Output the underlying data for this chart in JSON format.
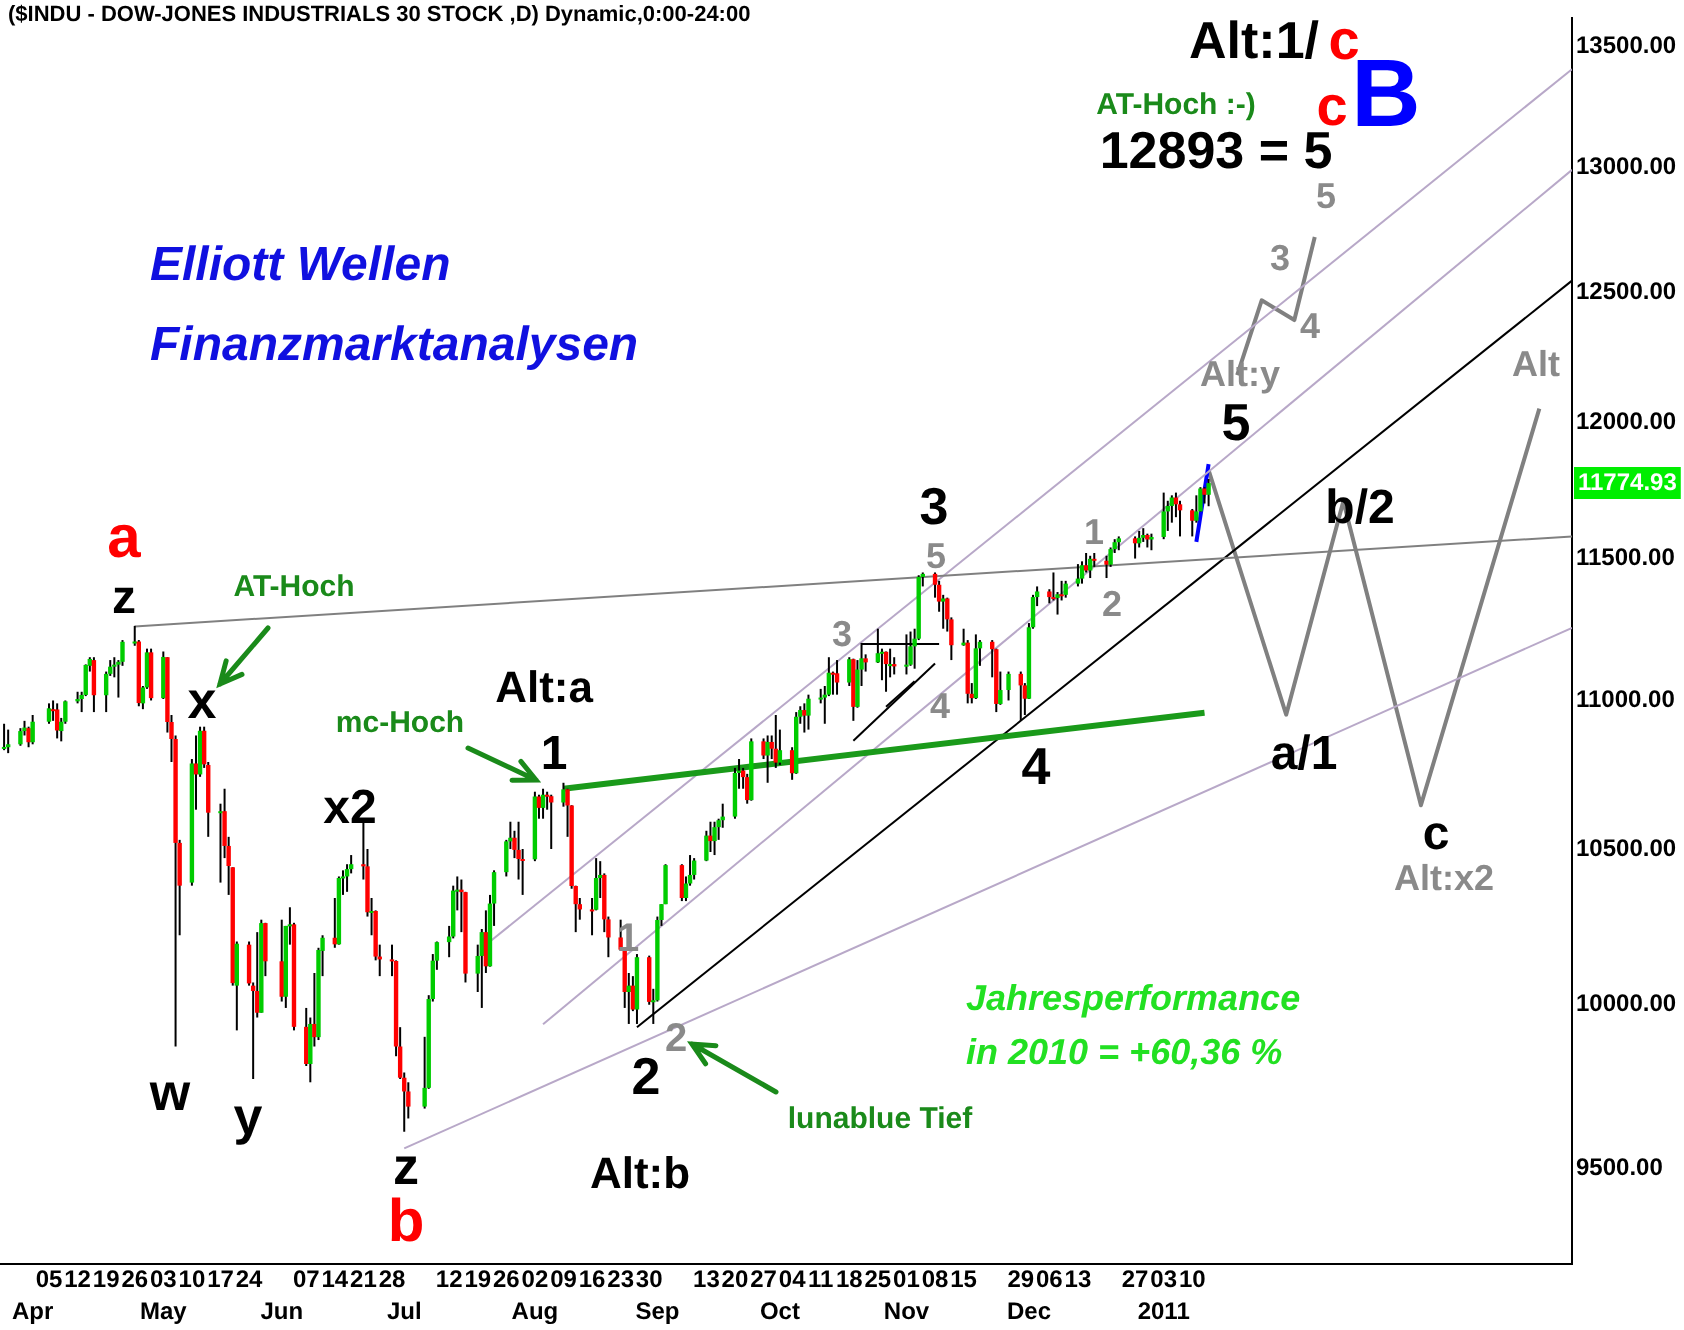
{
  "chart_data": {
    "type": "candlestick",
    "title": "($INDU - DOW-JONES INDUSTRIALS 30 STOCK ,D) Dynamic,0:00-24:00",
    "log": true,
    "xlim": [
      "2010-03-24",
      "2011-04-13"
    ],
    "xticks": [
      {
        "value": "2010-04-05",
        "label": "05"
      },
      {
        "value": "2010-04-12",
        "label": "12"
      },
      {
        "value": "2010-04-19",
        "label": "19"
      },
      {
        "value": "2010-04-26",
        "label": "26"
      },
      {
        "value": "2010-05-03",
        "label": "03"
      },
      {
        "value": "2010-05-10",
        "label": "10"
      },
      {
        "value": "2010-05-17",
        "label": "17"
      },
      {
        "value": "2010-05-24",
        "label": "24"
      },
      {
        "value": "2010-06-07",
        "label": "07"
      },
      {
        "value": "2010-06-14",
        "label": "14"
      },
      {
        "value": "2010-06-21",
        "label": "21"
      },
      {
        "value": "2010-06-28",
        "label": "28"
      },
      {
        "value": "2010-07-12",
        "label": "12"
      },
      {
        "value": "2010-07-19",
        "label": "19"
      },
      {
        "value": "2010-07-26",
        "label": "26"
      },
      {
        "value": "2010-08-02",
        "label": "02"
      },
      {
        "value": "2010-08-09",
        "label": "09"
      },
      {
        "value": "2010-08-16",
        "label": "16"
      },
      {
        "value": "2010-08-23",
        "label": "23"
      },
      {
        "value": "2010-08-30",
        "label": "30"
      },
      {
        "value": "2010-09-13",
        "label": "13"
      },
      {
        "value": "2010-09-20",
        "label": "20"
      },
      {
        "value": "2010-09-27",
        "label": "27"
      },
      {
        "value": "2010-10-04",
        "label": "04"
      },
      {
        "value": "2010-10-11",
        "label": "11"
      },
      {
        "value": "2010-10-18",
        "label": "18"
      },
      {
        "value": "2010-10-25",
        "label": "25"
      },
      {
        "value": "2010-11-01",
        "label": "01"
      },
      {
        "value": "2010-11-08",
        "label": "08"
      },
      {
        "value": "2010-11-15",
        "label": "15"
      },
      {
        "value": "2010-11-29",
        "label": "29"
      },
      {
        "value": "2010-12-06",
        "label": "06"
      },
      {
        "value": "2010-12-13",
        "label": "13"
      },
      {
        "value": "2010-12-27",
        "label": "27"
      },
      {
        "value": "2011-01-03",
        "label": "03"
      },
      {
        "value": "2011-01-10",
        "label": "10"
      }
    ],
    "x2lim": [
      "2010-03-24",
      "2011-04-13"
    ],
    "x2ticks": [
      {
        "value": "2010-04-01",
        "label": "Apr"
      },
      {
        "value": "2010-05-03",
        "label": "May"
      },
      {
        "value": "2010-06-01",
        "label": "Jun"
      },
      {
        "value": "2010-07-01",
        "label": "Jul"
      },
      {
        "value": "2010-08-02",
        "label": "Aug"
      },
      {
        "value": "2010-09-01",
        "label": "Sep"
      },
      {
        "value": "2010-10-01",
        "label": "Oct"
      },
      {
        "value": "2010-11-01",
        "label": "Nov"
      },
      {
        "value": "2010-12-01",
        "label": "Dec"
      },
      {
        "value": "2011-01-03",
        "label": "2011"
      }
    ],
    "ylim": [
      9220,
      13620
    ],
    "yticks": [
      {
        "value": 9500,
        "label": "9500.00"
      },
      {
        "value": 10000,
        "label": "10000.00"
      },
      {
        "value": 10500,
        "label": "10500.00"
      },
      {
        "value": 11000,
        "label": "11000.00"
      },
      {
        "value": 11500,
        "label": "11500.00"
      },
      {
        "value": 12000,
        "label": "12000.00"
      },
      {
        "value": 12500,
        "label": "12500.00"
      },
      {
        "value": 13000,
        "label": "13000.00"
      },
      {
        "value": 13500,
        "label": "13500.00"
      }
    ],
    "x": [
      "2010-03-25",
      "2010-03-26",
      "2010-03-29",
      "2010-03-30",
      "2010-03-31",
      "2010-04-01",
      "2010-04-05",
      "2010-04-06",
      "2010-04-07",
      "2010-04-08",
      "2010-04-09",
      "2010-04-12",
      "2010-04-13",
      "2010-04-14",
      "2010-04-15",
      "2010-04-16",
      "2010-04-19",
      "2010-04-20",
      "2010-04-21",
      "2010-04-22",
      "2010-04-23",
      "2010-04-26",
      "2010-04-27",
      "2010-04-28",
      "2010-04-29",
      "2010-04-30",
      "2010-05-03",
      "2010-05-04",
      "2010-05-05",
      "2010-05-06",
      "2010-05-07",
      "2010-05-10",
      "2010-05-11",
      "2010-05-12",
      "2010-05-13",
      "2010-05-14",
      "2010-05-17",
      "2010-05-18",
      "2010-05-19",
      "2010-05-20",
      "2010-05-21",
      "2010-05-24",
      "2010-05-25",
      "2010-05-26",
      "2010-05-27",
      "2010-05-28",
      "2010-06-01",
      "2010-06-02",
      "2010-06-03",
      "2010-06-04",
      "2010-06-07",
      "2010-06-08",
      "2010-06-09",
      "2010-06-10",
      "2010-06-11",
      "2010-06-14",
      "2010-06-15",
      "2010-06-16",
      "2010-06-17",
      "2010-06-18",
      "2010-06-21",
      "2010-06-22",
      "2010-06-23",
      "2010-06-24",
      "2010-06-25",
      "2010-06-28",
      "2010-06-29",
      "2010-06-30",
      "2010-07-01",
      "2010-07-02",
      "2010-07-06",
      "2010-07-07",
      "2010-07-08",
      "2010-07-09",
      "2010-07-12",
      "2010-07-13",
      "2010-07-14",
      "2010-07-15",
      "2010-07-16",
      "2010-07-19",
      "2010-07-20",
      "2010-07-21",
      "2010-07-22",
      "2010-07-23",
      "2010-07-26",
      "2010-07-27",
      "2010-07-28",
      "2010-07-29",
      "2010-07-30",
      "2010-08-02",
      "2010-08-03",
      "2010-08-04",
      "2010-08-05",
      "2010-08-06",
      "2010-08-09",
      "2010-08-10",
      "2010-08-11",
      "2010-08-12",
      "2010-08-13",
      "2010-08-16",
      "2010-08-17",
      "2010-08-18",
      "2010-08-19",
      "2010-08-20",
      "2010-08-23",
      "2010-08-24",
      "2010-08-25",
      "2010-08-26",
      "2010-08-27",
      "2010-08-30",
      "2010-08-31",
      "2010-09-01",
      "2010-09-02",
      "2010-09-03",
      "2010-09-07",
      "2010-09-08",
      "2010-09-09",
      "2010-09-10",
      "2010-09-13",
      "2010-09-14",
      "2010-09-15",
      "2010-09-16",
      "2010-09-17",
      "2010-09-20",
      "2010-09-21",
      "2010-09-22",
      "2010-09-23",
      "2010-09-24",
      "2010-09-27",
      "2010-09-28",
      "2010-09-29",
      "2010-09-30",
      "2010-10-01",
      "2010-10-04",
      "2010-10-05",
      "2010-10-06",
      "2010-10-07",
      "2010-10-08",
      "2010-10-11",
      "2010-10-12",
      "2010-10-13",
      "2010-10-14",
      "2010-10-15",
      "2010-10-18",
      "2010-10-19",
      "2010-10-20",
      "2010-10-21",
      "2010-10-22",
      "2010-10-25",
      "2010-10-26",
      "2010-10-27",
      "2010-10-28",
      "2010-10-29",
      "2010-11-01",
      "2010-11-02",
      "2010-11-03",
      "2010-11-04",
      "2010-11-05",
      "2010-11-08",
      "2010-11-09",
      "2010-11-10",
      "2010-11-11",
      "2010-11-12",
      "2010-11-15",
      "2010-11-16",
      "2010-11-17",
      "2010-11-18",
      "2010-11-19",
      "2010-11-22",
      "2010-11-23",
      "2010-11-24",
      "2010-11-26",
      "2010-11-29",
      "2010-11-30",
      "2010-12-01",
      "2010-12-02",
      "2010-12-03",
      "2010-12-06",
      "2010-12-07",
      "2010-12-08",
      "2010-12-09",
      "2010-12-10",
      "2010-12-13",
      "2010-12-14",
      "2010-12-15",
      "2010-12-16",
      "2010-12-17",
      "2010-12-20",
      "2010-12-21",
      "2010-12-22",
      "2010-12-23",
      "2010-12-27",
      "2010-12-28",
      "2010-12-29",
      "2010-12-30",
      "2010-12-31",
      "2011-01-03",
      "2011-01-04",
      "2011-01-05",
      "2011-01-06",
      "2011-01-07",
      "2011-01-10",
      "2011-01-11",
      "2011-01-12",
      "2011-01-13",
      "2011-01-14"
    ],
    "ohlc": [
      [
        10840,
        10920,
        10830,
        10841
      ],
      [
        10840,
        10900,
        10820,
        10850
      ],
      [
        10850,
        10905,
        10845,
        10895
      ],
      [
        10895,
        10930,
        10880,
        10907
      ],
      [
        10905,
        10910,
        10840,
        10857
      ],
      [
        10857,
        10950,
        10850,
        10927
      ],
      [
        10927,
        10990,
        10920,
        10973
      ],
      [
        10970,
        11000,
        10930,
        10969
      ],
      [
        10969,
        10990,
        10870,
        10897
      ],
      [
        10895,
        10940,
        10860,
        10927
      ],
      [
        10927,
        11000,
        10920,
        10997
      ],
      [
        10997,
        11030,
        10990,
        11005
      ],
      [
        11005,
        11030,
        10960,
        11019
      ],
      [
        11019,
        11125,
        11015,
        11123
      ],
      [
        11120,
        11150,
        11100,
        11144
      ],
      [
        11140,
        11150,
        10960,
        11018
      ],
      [
        11018,
        11100,
        10960,
        11092
      ],
      [
        11092,
        11140,
        11085,
        11117
      ],
      [
        11117,
        11150,
        11080,
        11124
      ],
      [
        11124,
        11140,
        11010,
        11134
      ],
      [
        11134,
        11210,
        11120,
        11204
      ],
      [
        11204,
        11260,
        11190,
        11205
      ],
      [
        11205,
        11210,
        10980,
        10991
      ],
      [
        10990,
        11050,
        10970,
        11045
      ],
      [
        11045,
        11180,
        11040,
        11167
      ],
      [
        11167,
        11180,
        11000,
        11008
      ],
      [
        11008,
        11170,
        11005,
        11151
      ],
      [
        11150,
        11150,
        10890,
        10926
      ],
      [
        10926,
        10950,
        10790,
        10868
      ],
      [
        10868,
        10880,
        9870,
        10520
      ],
      [
        10520,
        10530,
        10220,
        10380
      ],
      [
        10390,
        10800,
        10380,
        10785
      ],
      [
        10785,
        10880,
        10630,
        10748
      ],
      [
        10748,
        10910,
        10740,
        10896
      ],
      [
        10896,
        10910,
        10770,
        10782
      ],
      [
        10780,
        10790,
        10540,
        10620
      ],
      [
        10620,
        10650,
        10390,
        10625
      ],
      [
        10625,
        10700,
        10470,
        10510
      ],
      [
        10510,
        10540,
        10350,
        10444
      ],
      [
        10440,
        10440,
        10060,
        10068
      ],
      [
        10060,
        10200,
        9920,
        10193
      ],
      [
        10190,
        10200,
        10060,
        10067
      ],
      [
        10060,
        10070,
        9770,
        10043
      ],
      [
        10043,
        10230,
        9960,
        9975
      ],
      [
        9975,
        10270,
        9975,
        10259
      ],
      [
        10259,
        10260,
        10090,
        10137
      ],
      [
        10137,
        10270,
        10010,
        10025
      ],
      [
        10025,
        10250,
        9990,
        10250
      ],
      [
        10250,
        10310,
        10190,
        10255
      ],
      [
        10255,
        10260,
        9920,
        9931
      ],
      [
        9931,
        9990,
        9810,
        9816
      ],
      [
        9816,
        9960,
        9760,
        9940
      ],
      [
        9940,
        10100,
        9870,
        9899
      ],
      [
        9899,
        10180,
        9890,
        10173
      ],
      [
        10170,
        10220,
        10090,
        10212
      ],
      [
        10212,
        10340,
        10180,
        10191
      ],
      [
        10191,
        10410,
        10190,
        10405
      ],
      [
        10405,
        10430,
        10350,
        10410
      ],
      [
        10410,
        10450,
        10360,
        10434
      ],
      [
        10434,
        10480,
        10420,
        10450
      ],
      [
        10450,
        10590,
        10400,
        10443
      ],
      [
        10443,
        10500,
        10280,
        10294
      ],
      [
        10294,
        10340,
        10220,
        10298
      ],
      [
        10298,
        10300,
        10140,
        10152
      ],
      [
        10152,
        10190,
        10090,
        10143
      ],
      [
        10143,
        10190,
        10090,
        10138
      ],
      [
        10138,
        10140,
        9840,
        9870
      ],
      [
        9870,
        9930,
        9770,
        9774
      ],
      [
        9774,
        9790,
        9610,
        9732
      ],
      [
        9732,
        9760,
        9650,
        9686
      ],
      [
        9686,
        9900,
        9680,
        9743
      ],
      [
        9743,
        10030,
        9740,
        10018
      ],
      [
        10018,
        10160,
        10010,
        10139
      ],
      [
        10139,
        10200,
        10110,
        10198
      ],
      [
        10198,
        10250,
        10150,
        10216
      ],
      [
        10216,
        10380,
        10210,
        10364
      ],
      [
        10364,
        10410,
        10300,
        10367
      ],
      [
        10367,
        10400,
        10230,
        10359
      ],
      [
        10359,
        10360,
        10070,
        10098
      ],
      [
        10098,
        10190,
        10040,
        10154
      ],
      [
        10154,
        10240,
        9990,
        10230
      ],
      [
        10230,
        10300,
        10100,
        10121
      ],
      [
        10121,
        10350,
        10120,
        10322
      ],
      [
        10322,
        10430,
        10250,
        10424
      ],
      [
        10424,
        10530,
        10410,
        10525
      ],
      [
        10525,
        10590,
        10500,
        10537
      ],
      [
        10537,
        10560,
        10470,
        10497
      ],
      [
        10497,
        10590,
        10400,
        10467
      ],
      [
        10467,
        10500,
        10350,
        10466
      ],
      [
        10466,
        10690,
        10460,
        10674
      ],
      [
        10674,
        10680,
        10600,
        10636
      ],
      [
        10636,
        10700,
        10600,
        10680
      ],
      [
        10680,
        10690,
        10630,
        10675
      ],
      [
        10675,
        10680,
        10500,
        10654
      ],
      [
        10654,
        10720,
        10640,
        10698
      ],
      [
        10698,
        10700,
        10540,
        10644
      ],
      [
        10644,
        10645,
        10370,
        10379
      ],
      [
        10379,
        10380,
        10230,
        10320
      ],
      [
        10320,
        10340,
        10270,
        10303
      ],
      [
        10303,
        10340,
        10220,
        10302
      ],
      [
        10302,
        10470,
        10300,
        10405
      ],
      [
        10405,
        10460,
        10340,
        10415
      ],
      [
        10415,
        10420,
        10230,
        10271
      ],
      [
        10271,
        10280,
        10150,
        10213
      ],
      [
        10213,
        10270,
        10170,
        10174
      ],
      [
        10174,
        10175,
        9990,
        10040
      ],
      [
        10040,
        10100,
        9940,
        10060
      ],
      [
        10060,
        10090,
        9980,
        9985
      ],
      [
        9985,
        10160,
        9940,
        10150
      ],
      [
        10150,
        10155,
        10000,
        10009
      ],
      [
        10009,
        10050,
        9940,
        10014
      ],
      [
        10014,
        10280,
        10010,
        10269
      ],
      [
        10269,
        10320,
        10250,
        10320
      ],
      [
        10320,
        10450,
        10320,
        10447
      ],
      [
        10447,
        10450,
        10330,
        10340
      ],
      [
        10340,
        10410,
        10330,
        10387
      ],
      [
        10387,
        10480,
        10380,
        10415
      ],
      [
        10415,
        10470,
        10400,
        10462
      ],
      [
        10462,
        10560,
        10460,
        10544
      ],
      [
        10544,
        10590,
        10490,
        10526
      ],
      [
        10526,
        10590,
        10480,
        10572
      ],
      [
        10572,
        10600,
        10530,
        10595
      ],
      [
        10595,
        10650,
        10570,
        10607
      ],
      [
        10607,
        10770,
        10600,
        10753
      ],
      [
        10753,
        10800,
        10700,
        10761
      ],
      [
        10761,
        10770,
        10700,
        10739
      ],
      [
        10739,
        10750,
        10650,
        10662
      ],
      [
        10662,
        10870,
        10660,
        10860
      ],
      [
        10860,
        10870,
        10800,
        10812
      ],
      [
        10812,
        10880,
        10720,
        10858
      ],
      [
        10858,
        10880,
        10800,
        10835
      ],
      [
        10835,
        10950,
        10770,
        10788
      ],
      [
        10788,
        10900,
        10780,
        10830
      ],
      [
        10830,
        10840,
        10730,
        10752
      ],
      [
        10752,
        10960,
        10750,
        10944
      ],
      [
        10944,
        10980,
        10920,
        10967
      ],
      [
        10967,
        10990,
        10890,
        10948
      ],
      [
        10948,
        11020,
        10900,
        11006
      ],
      [
        11006,
        11040,
        10990,
        11010
      ],
      [
        11010,
        11050,
        10920,
        11020
      ],
      [
        11020,
        11150,
        11015,
        11096
      ],
      [
        11096,
        11100,
        11020,
        11094
      ],
      [
        11094,
        11140,
        11020,
        11062
      ],
      [
        11062,
        11150,
        11050,
        11143
      ],
      [
        11143,
        11145,
        10930,
        10978
      ],
      [
        10978,
        11140,
        10975,
        11107
      ],
      [
        11107,
        11200,
        11050,
        11146
      ],
      [
        11146,
        11160,
        11100,
        11132
      ],
      [
        11132,
        11250,
        11130,
        11164
      ],
      [
        11164,
        11180,
        11070,
        11169
      ],
      [
        11169,
        11170,
        11030,
        11126
      ],
      [
        11126,
        11180,
        11080,
        11126
      ],
      [
        11126,
        11150,
        11090,
        11118
      ],
      [
        11118,
        11230,
        11090,
        11124
      ],
      [
        11124,
        11240,
        11120,
        11188
      ],
      [
        11188,
        11250,
        11110,
        11215
      ],
      [
        11215,
        11440,
        11210,
        11434
      ],
      [
        11434,
        11450,
        11400,
        11445
      ],
      [
        11445,
        11450,
        11360,
        11406
      ],
      [
        11406,
        11420,
        11310,
        11346
      ],
      [
        11346,
        11370,
        11250,
        11357
      ],
      [
        11357,
        11360,
        11240,
        11283
      ],
      [
        11283,
        11290,
        11140,
        11192
      ],
      [
        11192,
        11250,
        11190,
        11201
      ],
      [
        11201,
        11210,
        10990,
        11023
      ],
      [
        11023,
        11060,
        10990,
        11008
      ],
      [
        11008,
        11230,
        11005,
        11181
      ],
      [
        11181,
        11210,
        11120,
        11204
      ],
      [
        11204,
        11210,
        11080,
        11178
      ],
      [
        11178,
        11180,
        10960,
        10988
      ],
      [
        10988,
        11100,
        10985,
        11036
      ],
      [
        11036,
        11100,
        11000,
        11092
      ],
      [
        11092,
        11100,
        10930,
        11052
      ],
      [
        11052,
        11060,
        10950,
        11006
      ],
      [
        11006,
        11270,
        11005,
        11255
      ],
      [
        11255,
        11370,
        11250,
        11362
      ],
      [
        11362,
        11400,
        11330,
        11382
      ],
      [
        11382,
        11390,
        11340,
        11362
      ],
      [
        11362,
        11450,
        11350,
        11359
      ],
      [
        11359,
        11380,
        11300,
        11372
      ],
      [
        11372,
        11420,
        11350,
        11370
      ],
      [
        11370,
        11420,
        11360,
        11410
      ],
      [
        11410,
        11480,
        11400,
        11428
      ],
      [
        11428,
        11490,
        11410,
        11476
      ],
      [
        11476,
        11520,
        11450,
        11457
      ],
      [
        11457,
        11510,
        11430,
        11499
      ],
      [
        11499,
        11520,
        11470,
        11492
      ],
      [
        11492,
        11510,
        11430,
        11478
      ],
      [
        11478,
        11540,
        11470,
        11534
      ],
      [
        11534,
        11570,
        11520,
        11559
      ],
      [
        11559,
        11580,
        11530,
        11573
      ],
      [
        11573,
        11580,
        11500,
        11555
      ],
      [
        11555,
        11600,
        11540,
        11575
      ],
      [
        11575,
        11610,
        11560,
        11585
      ],
      [
        11585,
        11590,
        11540,
        11569
      ],
      [
        11569,
        11590,
        11530,
        11578
      ],
      [
        11578,
        11740,
        11570,
        11671
      ],
      [
        11671,
        11710,
        11600,
        11691
      ],
      [
        11691,
        11730,
        11630,
        11722
      ],
      [
        11722,
        11740,
        11650,
        11697
      ],
      [
        11697,
        11710,
        11580,
        11675
      ],
      [
        11675,
        11680,
        11580,
        11637
      ],
      [
        11637,
        11730,
        11630,
        11671
      ],
      [
        11671,
        11760,
        11670,
        11755
      ],
      [
        11755,
        11760,
        11700,
        11732
      ],
      [
        11732,
        11790,
        11690,
        11774.93
      ]
    ],
    "series": [
      {
        "type": "line",
        "x": [
          "2010-04-26",
          "2011-04-13"
        ],
        "values": [
          11258,
          11580
        ],
        "color": "#808080"
      },
      {
        "type": "line",
        "x": [
          "2010-08-09",
          "2011-01-13"
        ],
        "values": [
          10700,
          10958
        ],
        "color": "#1a9a1a"
      },
      {
        "type": "line",
        "x": [
          "2010-08-27",
          "2011-04-13"
        ],
        "values": [
          9930,
          12546
        ],
        "color": "#000000"
      },
      {
        "type": "line",
        "x": [
          "2010-07-01",
          "2011-04-13"
        ],
        "values": [
          9560,
          11253
        ],
        "color": "#b8a8c8"
      },
      {
        "type": "line",
        "x": [
          "2010-07-22",
          "2011-04-13"
        ],
        "values": [
          10200,
          13405
        ],
        "color": "#b8a8c8"
      },
      {
        "type": "line",
        "x": [
          "2010-08-04",
          "2011-04-13"
        ],
        "values": [
          9939,
          12989
        ],
        "color": "#b8a8c8"
      },
      {
        "type": "line",
        "x": [
          "2010-10-21",
          "2010-11-09"
        ],
        "values": [
          11196,
          11196
        ],
        "color": "#000000"
      },
      {
        "type": "line",
        "x": [
          "2010-10-19",
          "2010-11-08"
        ],
        "values": [
          10862,
          11128
        ],
        "color": "#000000"
      },
      {
        "type": "line",
        "x": [
          "2010-10-27",
          "2010-11-03"
        ],
        "values": [
          10978,
          11066
        ],
        "color": "#000000"
      },
      {
        "type": "line",
        "x": [
          "2011-01-11",
          "2011-01-14"
        ],
        "values": [
          11560,
          11845
        ],
        "color": "#0000ff"
      },
      {
        "type": "line",
        "x": [
          "2011-01-14",
          "2011-02-02",
          "2011-02-16",
          "2011-03-07",
          "2011-04-05"
        ],
        "values": [
          11823,
          10951,
          11708,
          10645,
          12053
        ],
        "color": "#808080"
      },
      {
        "type": "line",
        "x": [
          "2011-01-21",
          "2011-01-27",
          "2011-02-04",
          "2011-02-09"
        ],
        "values": [
          12180,
          12469,
          12392,
          12719
        ],
        "color": "#808080"
      }
    ],
    "annotations": [
      "a",
      "z",
      "AT-Hoch",
      "x",
      "mc-Hoch",
      "x2",
      "w",
      "y",
      "z",
      "b",
      "Alt:a",
      "1",
      "1",
      "2",
      "2",
      "Alt:b",
      "lunablue Tief",
      "3",
      "4",
      "5",
      "3",
      "4",
      "1",
      "2",
      "5",
      "Alt:y",
      "3",
      "4",
      "5",
      "12893 = 5",
      "AT-Hoch :-)",
      "c",
      "Alt:1/",
      "c",
      "B",
      "b/2",
      "a/1",
      "c",
      "Alt:x2",
      "Alt",
      "Elliott Wellen",
      "Finanzmarktanalysen",
      "Jahresperformance",
      "in 2010 = +60,36 %",
      "11774.93"
    ]
  }
}
